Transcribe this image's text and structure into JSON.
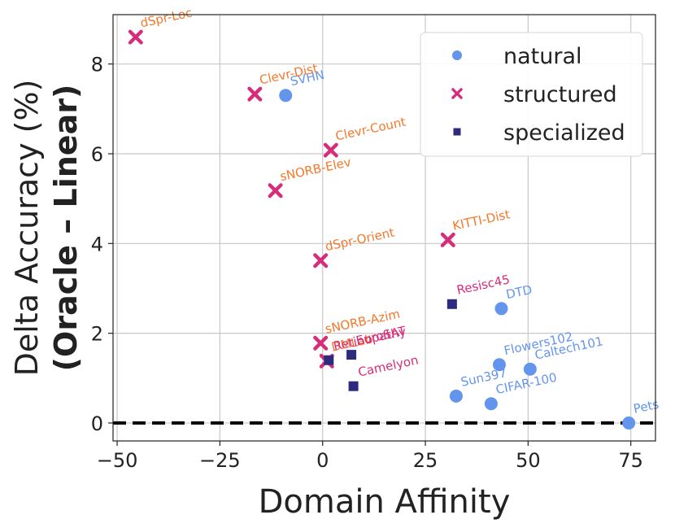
{
  "chart_data": {
    "type": "scatter",
    "xlabel": "Domain Affinity",
    "ylabel_line1": "Delta Accuracy (%)",
    "ylabel_line2": "(Oracle – Linear)",
    "xlim": [
      -51,
      81
    ],
    "ylim": [
      -0.4,
      9.1
    ],
    "xticks": [
      -50,
      -25,
      0,
      25,
      50,
      75
    ],
    "xtick_labels": [
      "−50",
      "−25",
      "0",
      "25",
      "50",
      "75"
    ],
    "yticks": [
      0,
      2,
      4,
      6,
      8
    ],
    "ytick_labels": [
      "0",
      "2",
      "4",
      "6",
      "8"
    ],
    "grid": true,
    "reference_line": {
      "y": 0,
      "style": "dashed"
    },
    "legend_position": "top-right",
    "series": [
      {
        "name": "natural",
        "marker": "circle",
        "color": "#6495ED",
        "label_color": "#6495ED",
        "points": [
          {
            "label": "SVHN",
            "x": -9,
            "y": 7.3
          },
          {
            "label": "DTD",
            "x": 43.5,
            "y": 2.55
          },
          {
            "label": "Flowers102",
            "x": 43,
            "y": 1.3
          },
          {
            "label": "Caltech101",
            "x": 50.5,
            "y": 1.2
          },
          {
            "label": "Sun397",
            "x": 32.5,
            "y": 0.6
          },
          {
            "label": "CIFAR-100",
            "x": 41,
            "y": 0.43
          },
          {
            "label": "Pets",
            "x": 74.5,
            "y": 0.0
          }
        ]
      },
      {
        "name": "structured",
        "marker": "x",
        "color": "#D62D7B",
        "label_color": "#F5782A",
        "points": [
          {
            "label": "dSpr-Loc",
            "x": -45.5,
            "y": 8.6
          },
          {
            "label": "Clevr-Dist",
            "x": -16.5,
            "y": 7.33
          },
          {
            "label": "Clevr-Count",
            "x": 2,
            "y": 6.08
          },
          {
            "label": "sNORB-Elev",
            "x": -11.5,
            "y": 5.18
          },
          {
            "label": "dSpr-Orient",
            "x": -0.5,
            "y": 3.62
          },
          {
            "label": "KITTI-Dist",
            "x": 30.5,
            "y": 4.08
          },
          {
            "label": "sNORB-Azim",
            "x": -0.5,
            "y": 1.78
          },
          {
            "label": "DMLab",
            "x": 1,
            "y": 1.38
          }
        ]
      },
      {
        "name": "specialized",
        "marker": "square",
        "color": "#2E2A7E",
        "label_color": "#D62D7B",
        "points": [
          {
            "label": "Resisc45",
            "x": 31.5,
            "y": 2.65
          },
          {
            "label": "EuroSAT",
            "x": 7,
            "y": 1.52
          },
          {
            "label": "Retinopathy",
            "x": 1.5,
            "y": 1.4
          },
          {
            "label": "Camelyon",
            "x": 7.5,
            "y": 0.82
          }
        ]
      }
    ]
  }
}
